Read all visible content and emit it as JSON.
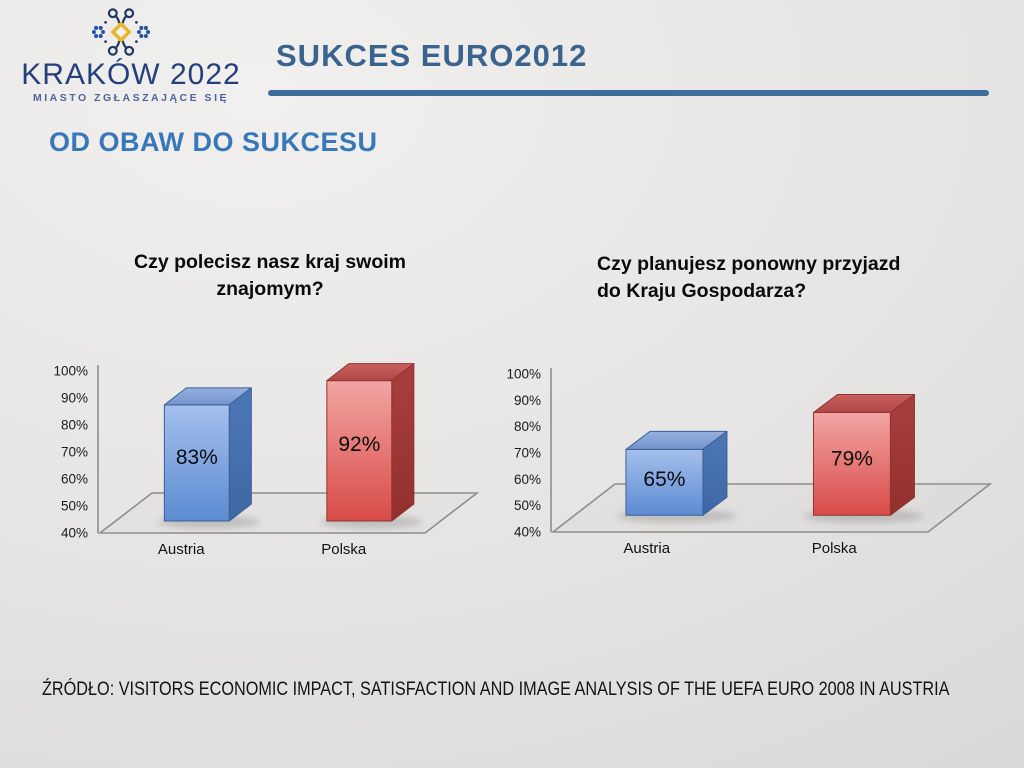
{
  "logo": {
    "title": "KRAKÓW 2022",
    "subtitle": "MIASTO ZGŁASZAJĄCE SIĘ",
    "emblem_icon": "folk-flower-emblem",
    "colors": {
      "navy": "#1F3864",
      "blue": "#2456A8",
      "gold": "#EBB42C"
    }
  },
  "header": {
    "title": "SUKCES EURO2012",
    "title_color": "#3A648E",
    "underline_color": "#3E6C9E"
  },
  "section_heading": "OD OBAW DO SUKCESU",
  "section_heading_color": "#3878BA",
  "footer": {
    "source": "ŹRÓDŁO: VISITORS ECONOMIC IMPACT, SATISFACTION AND IMAGE ANALYSIS OF THE UEFA EURO 2008 IN AUSTRIA"
  },
  "palette": {
    "austria_bar": {
      "front_top": "#A5C0EC",
      "front_bottom": "#5C8BD2",
      "top_light": "#96B1E2",
      "top_dark": "#7394CB",
      "side_top": "#4C77B6",
      "side_bottom": "#3F67A4",
      "outline": "#3A5F99"
    },
    "polska_bar": {
      "front_top": "#F2A5A3",
      "front_bottom": "#D84B48",
      "top_light": "#C9605E",
      "top_dark": "#B04646",
      "side_top": "#A83F3D",
      "side_bottom": "#93302E",
      "outline": "#8E3432"
    },
    "axis_line": "#8E8E8E",
    "text": "#111111"
  },
  "chart_data": [
    {
      "type": "bar",
      "style": "3d-column",
      "title": "Czy polecisz nasz kraj swoim znajomym?",
      "title_lines": [
        "Czy polecisz nasz kraj swoim",
        "znajomym?"
      ],
      "categories": [
        "Austria",
        "Polska"
      ],
      "values": [
        83,
        92
      ],
      "value_labels": [
        "83%",
        "92%"
      ],
      "series_keys": [
        "austria_bar",
        "polska_bar"
      ],
      "ylim": [
        40,
        100
      ],
      "ytick_step": 10,
      "ytick_labels": [
        "40%",
        "50%",
        "60%",
        "70%",
        "80%",
        "90%",
        "100%"
      ],
      "grid": false,
      "legend": "none"
    },
    {
      "type": "bar",
      "style": "3d-column",
      "title": "Czy planujesz ponowny przyjazd do Kraju Gospodarza?",
      "title_lines": [
        "Czy planujesz ponowny przyjazd",
        "do Kraju Gospodarza?"
      ],
      "categories": [
        "Austria",
        "Polska"
      ],
      "values": [
        65,
        79
      ],
      "value_labels": [
        "65%",
        "79%"
      ],
      "series_keys": [
        "austria_bar",
        "polska_bar"
      ],
      "ylim": [
        40,
        100
      ],
      "ytick_step": 10,
      "ytick_labels": [
        "40%",
        "50%",
        "60%",
        "70%",
        "80%",
        "90%",
        "100%"
      ],
      "grid": false,
      "legend": "none"
    }
  ]
}
